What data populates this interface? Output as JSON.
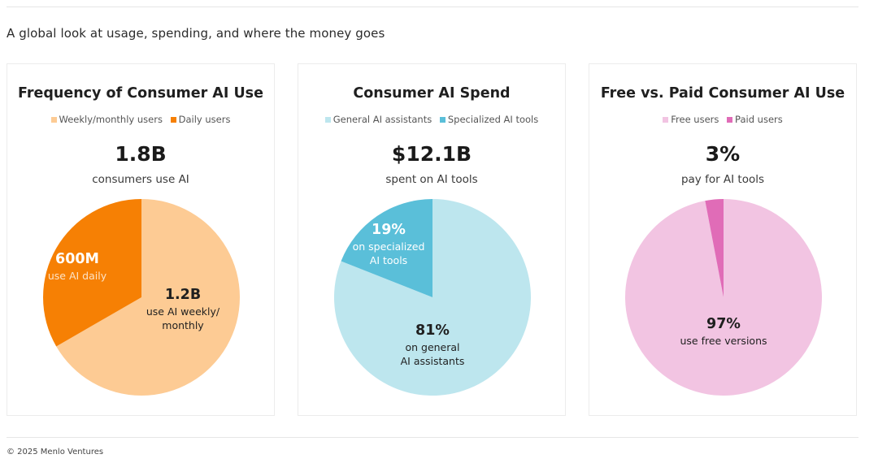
{
  "page": {
    "subtitle": "A global look at usage, spending, and where the money goes",
    "footer": "© 2025 Menlo Ventures"
  },
  "colors": {
    "daily": "#f68004",
    "weekly": "#fdcb94",
    "specialized": "#5abfd9",
    "general": "#bde6ee",
    "paid": "#e06cb7",
    "free": "#f2c4e2"
  },
  "cards": [
    {
      "title": "Frequency of Consumer AI Use",
      "legend": [
        "Weekly/monthly users",
        "Daily users"
      ],
      "headline": "1.8B",
      "headline_sub": "consumers use AI",
      "slices": [
        {
          "value": "600M",
          "text": [
            "use AI daily"
          ]
        },
        {
          "value": "1.2B",
          "text": [
            "use AI weekly/",
            "monthly"
          ]
        }
      ]
    },
    {
      "title": "Consumer AI Spend",
      "legend": [
        "General AI assistants",
        "Specialized AI tools"
      ],
      "headline": "$12.1B",
      "headline_sub": "spent on AI tools",
      "slices": [
        {
          "value": "19%",
          "text": [
            "on specialized",
            "AI tools"
          ]
        },
        {
          "value": "81%",
          "text": [
            "on general",
            "AI assistants"
          ]
        }
      ]
    },
    {
      "title": "Free vs. Paid Consumer AI Use",
      "legend": [
        "Free users",
        "Paid users"
      ],
      "headline": "3%",
      "headline_sub": "pay for AI tools",
      "slices": [
        {
          "value": "97%",
          "text": [
            "use free versions"
          ]
        }
      ]
    }
  ],
  "chart_data": [
    {
      "type": "pie",
      "title": "Frequency of Consumer AI Use",
      "categories": [
        "Weekly/monthly users",
        "Daily users"
      ],
      "values": [
        1.2,
        0.6
      ],
      "unit": "B users",
      "colors": [
        "#fdcb94",
        "#f68004"
      ],
      "legend": "top-center"
    },
    {
      "type": "pie",
      "title": "Consumer AI Spend",
      "categories": [
        "General AI assistants",
        "Specialized AI tools"
      ],
      "values": [
        81,
        19
      ],
      "unit": "%",
      "colors": [
        "#bde6ee",
        "#5abfd9"
      ],
      "legend": "top-center"
    },
    {
      "type": "pie",
      "title": "Free vs. Paid Consumer AI Use",
      "categories": [
        "Free users",
        "Paid users"
      ],
      "values": [
        97,
        3
      ],
      "unit": "%",
      "colors": [
        "#f2c4e2",
        "#e06cb7"
      ],
      "legend": "top-center"
    }
  ]
}
